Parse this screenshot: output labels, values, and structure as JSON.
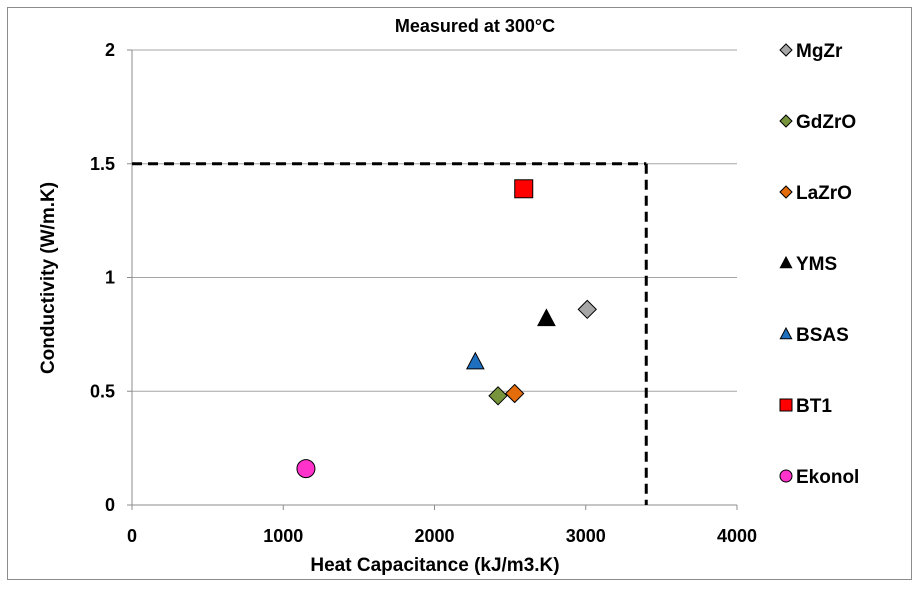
{
  "chart_data": {
    "type": "scatter",
    "title": "Measured at 300°C",
    "xlabel": "Heat Capacitance (kJ/m3.K)",
    "ylabel": "Conductivity (W/m.K)",
    "xlim": [
      0,
      4000
    ],
    "ylim": [
      0,
      2
    ],
    "xticks": [
      "0",
      "1000",
      "2000",
      "3000",
      "4000"
    ],
    "yticks": [
      "0",
      "0.5",
      "1",
      "1.5",
      "2"
    ],
    "grid": "horizontal",
    "legend_position": "right",
    "series": [
      {
        "name": "MgZr",
        "marker": "diamond",
        "color": "#a6a6a6",
        "x": 3010,
        "y": 0.86
      },
      {
        "name": "GdZrO",
        "marker": "diamond",
        "color": "#77933c",
        "x": 2420,
        "y": 0.48
      },
      {
        "name": "LaZrO",
        "marker": "diamond",
        "color": "#e46c0a",
        "x": 2530,
        "y": 0.49
      },
      {
        "name": "YMS",
        "marker": "triangle",
        "color": "#000000",
        "x": 2740,
        "y": 0.82
      },
      {
        "name": "BSAS",
        "marker": "triangle",
        "color": "#1f6fbf",
        "x": 2270,
        "y": 0.63
      },
      {
        "name": "BT1",
        "marker": "square",
        "color": "#ff0000",
        "x": 2590,
        "y": 1.39
      },
      {
        "name": "Ekonol",
        "marker": "circle",
        "color": "#ff33cc",
        "x": 1150,
        "y": 0.16
      }
    ],
    "limit_box": {
      "x_max": 3400,
      "y_max": 1.5,
      "style": "dashed",
      "color": "#000000"
    }
  }
}
